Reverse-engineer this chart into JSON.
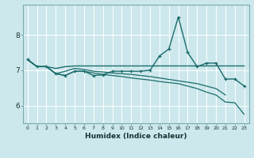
{
  "xlabel": "Humidex (Indice chaleur)",
  "background_color": "#cce8ec",
  "line_color": "#1a6b6b",
  "grid_color": "#aed4d8",
  "xlim": [
    -0.5,
    23.5
  ],
  "ylim": [
    5.5,
    8.85
  ],
  "yticks": [
    6,
    7,
    8
  ],
  "xtick_labels": [
    "0",
    "1",
    "2",
    "3",
    "4",
    "5",
    "6",
    "7",
    "8",
    "9",
    "10",
    "11",
    "12",
    "13",
    "14",
    "15",
    "16",
    "17",
    "18",
    "19",
    "20",
    "21",
    "22",
    "23"
  ],
  "series_main": [
    7.3,
    7.1,
    7.1,
    6.9,
    6.85,
    6.97,
    6.97,
    6.85,
    6.87,
    6.97,
    6.97,
    6.97,
    6.97,
    7.0,
    7.4,
    7.6,
    8.5,
    7.5,
    7.1,
    7.2,
    7.2,
    6.75,
    6.75,
    6.55
  ],
  "series_flat": [
    7.3,
    7.1,
    7.1,
    7.05,
    7.1,
    7.12,
    7.12,
    7.12,
    7.12,
    7.12,
    7.12,
    7.12,
    7.12,
    7.12,
    7.12,
    7.12,
    7.12,
    7.12,
    7.12,
    7.12,
    7.12,
    7.12,
    7.12,
    7.12
  ],
  "series_mid": [
    7.3,
    7.1,
    7.1,
    6.9,
    6.97,
    7.05,
    7.02,
    6.97,
    6.95,
    6.92,
    6.9,
    6.88,
    6.85,
    6.82,
    6.78,
    6.74,
    6.7,
    6.66,
    6.62,
    6.55,
    6.48,
    6.3,
    6.25,
    null
  ],
  "series_long": [
    7.3,
    7.1,
    7.1,
    6.9,
    6.85,
    6.97,
    6.97,
    6.92,
    6.88,
    6.85,
    6.82,
    6.78,
    6.75,
    6.72,
    6.68,
    6.65,
    6.62,
    6.55,
    6.48,
    6.38,
    6.3,
    6.1,
    6.08,
    5.75
  ]
}
